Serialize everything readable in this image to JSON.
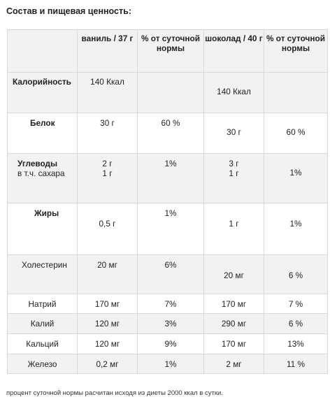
{
  "heading": "Состав и пищевая ценность:",
  "columns": [
    "",
    "ваниль / 37 г",
    "% от суточной нормы",
    "шоколад / 40 г",
    "% от суточной нормы"
  ],
  "rows": [
    {
      "name": "Калорийность",
      "sub": "",
      "v1": "140 Ккал",
      "p1": "",
      "v2": "140 Ккал",
      "p2": ""
    },
    {
      "name": "Белок",
      "sub": "",
      "v1": "30 г",
      "p1": "60 %",
      "v2": "30 г",
      "p2": "60 %"
    },
    {
      "name": "Углеводы",
      "sub": "в т.ч. сахара",
      "v1": "2 г",
      "v1b": "1 г",
      "p1": "1%",
      "v2": "3 г",
      "v2b": "1 г",
      "p2": "1%"
    },
    {
      "name": "Жиры",
      "sub": "",
      "v1": "0,5 г",
      "p1": "1%",
      "v2": "1 г",
      "p2": "1%"
    },
    {
      "name": "Холестерин",
      "sub": "",
      "v1": "20 мг",
      "p1": "6%",
      "v2": "20 мг",
      "p2": "6 %"
    },
    {
      "name": "Натрий",
      "sub": "",
      "v1": "170 мг",
      "p1": "7%",
      "v2": "170 мг",
      "p2": "7 %"
    },
    {
      "name": "Калий",
      "sub": "",
      "v1": "120 мг",
      "p1": "3%",
      "v2": "290 мг",
      "p2": "6 %"
    },
    {
      "name": "Кальций",
      "sub": "",
      "v1": "120 мг",
      "p1": "9%",
      "v2": "170 мг",
      "p2": "13%"
    },
    {
      "name": "Железо",
      "sub": "",
      "v1": "0,2 мг",
      "p1": "1%",
      "v2": "2 мг",
      "p2": "11 %"
    }
  ],
  "footnote": "процент суточной нормы расчитан исходя из диеты 2000 ккал в сутки."
}
